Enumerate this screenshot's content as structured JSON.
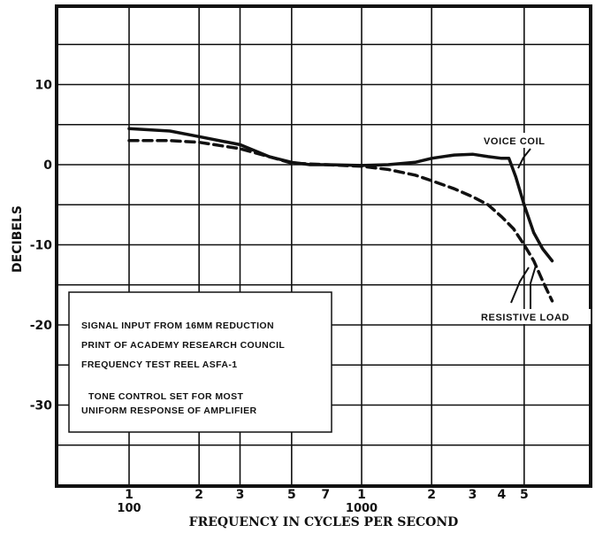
{
  "chart_data": {
    "type": "line",
    "title": "",
    "xlabel": "FREQUENCY IN CYCLES PER SECOND",
    "ylabel": "DECIBELS",
    "x_scale": "log",
    "xlim": [
      50,
      10000
    ],
    "ylim": [
      -40,
      20
    ],
    "x_minor_labels": [
      {
        "x": 100,
        "label": "1"
      },
      {
        "x": 200,
        "label": "2"
      },
      {
        "x": 300,
        "label": "3"
      },
      {
        "x": 500,
        "label": "5"
      },
      {
        "x": 700,
        "label": "7"
      },
      {
        "x": 1000,
        "label": "1"
      },
      {
        "x": 2000,
        "label": "2"
      },
      {
        "x": 3000,
        "label": "3"
      },
      {
        "x": 4000,
        "label": "4"
      },
      {
        "x": 5000,
        "label": "5"
      }
    ],
    "x_major_labels": [
      {
        "x": 100,
        "label": "100"
      },
      {
        "x": 1000,
        "label": "1000"
      }
    ],
    "y_ticks": [
      {
        "y": 10,
        "label": "10"
      },
      {
        "y": 0,
        "label": "0"
      },
      {
        "y": -10,
        "label": "-10"
      },
      {
        "y": -20,
        "label": "-20"
      },
      {
        "y": -30,
        "label": "-30"
      }
    ],
    "grid": true,
    "series": [
      {
        "name": "VOICE COIL",
        "style": "solid",
        "x": [
          100,
          150,
          200,
          300,
          400,
          500,
          600,
          700,
          1000,
          1300,
          1700,
          2000,
          2500,
          3000,
          3500,
          4000,
          4300,
          4600,
          5000,
          5500,
          6000,
          6600
        ],
        "y": [
          4.5,
          4.2,
          3.5,
          2.5,
          1.0,
          0.3,
          0.0,
          0.0,
          -0.1,
          0.0,
          0.3,
          0.8,
          1.2,
          1.3,
          1.0,
          0.8,
          0.8,
          -1.5,
          -5.0,
          -8.5,
          -10.5,
          -12.0
        ]
      },
      {
        "name": "RESISTIVE LOAD",
        "style": "dashed",
        "x": [
          100,
          150,
          200,
          300,
          400,
          500,
          700,
          1000,
          1300,
          1700,
          2000,
          2500,
          3000,
          3500,
          4000,
          4500,
          5000,
          5500,
          6000,
          6600
        ],
        "y": [
          3.0,
          3.0,
          2.8,
          2.0,
          1.0,
          0.2,
          0.0,
          -0.2,
          -0.6,
          -1.3,
          -2.0,
          -3.0,
          -4.0,
          -5.0,
          -6.5,
          -8.0,
          -10.0,
          -12.0,
          -14.5,
          -17.0
        ]
      }
    ],
    "annotations": [
      {
        "label": "VOICE COIL"
      },
      {
        "label": "RESISTIVE LOAD"
      }
    ],
    "note_lines": [
      "SIGNAL INPUT FROM 16MM REDUCTION",
      "PRINT OF ACADEMY RESEARCH COUNCIL",
      "FREQUENCY TEST REEL ASFA-1",
      "TONE CONTROL SET FOR MOST",
      "UNIFORM RESPONSE OF AMPLIFIER"
    ]
  },
  "colors": {
    "ink": "#111111",
    "paper": "#ffffff"
  }
}
